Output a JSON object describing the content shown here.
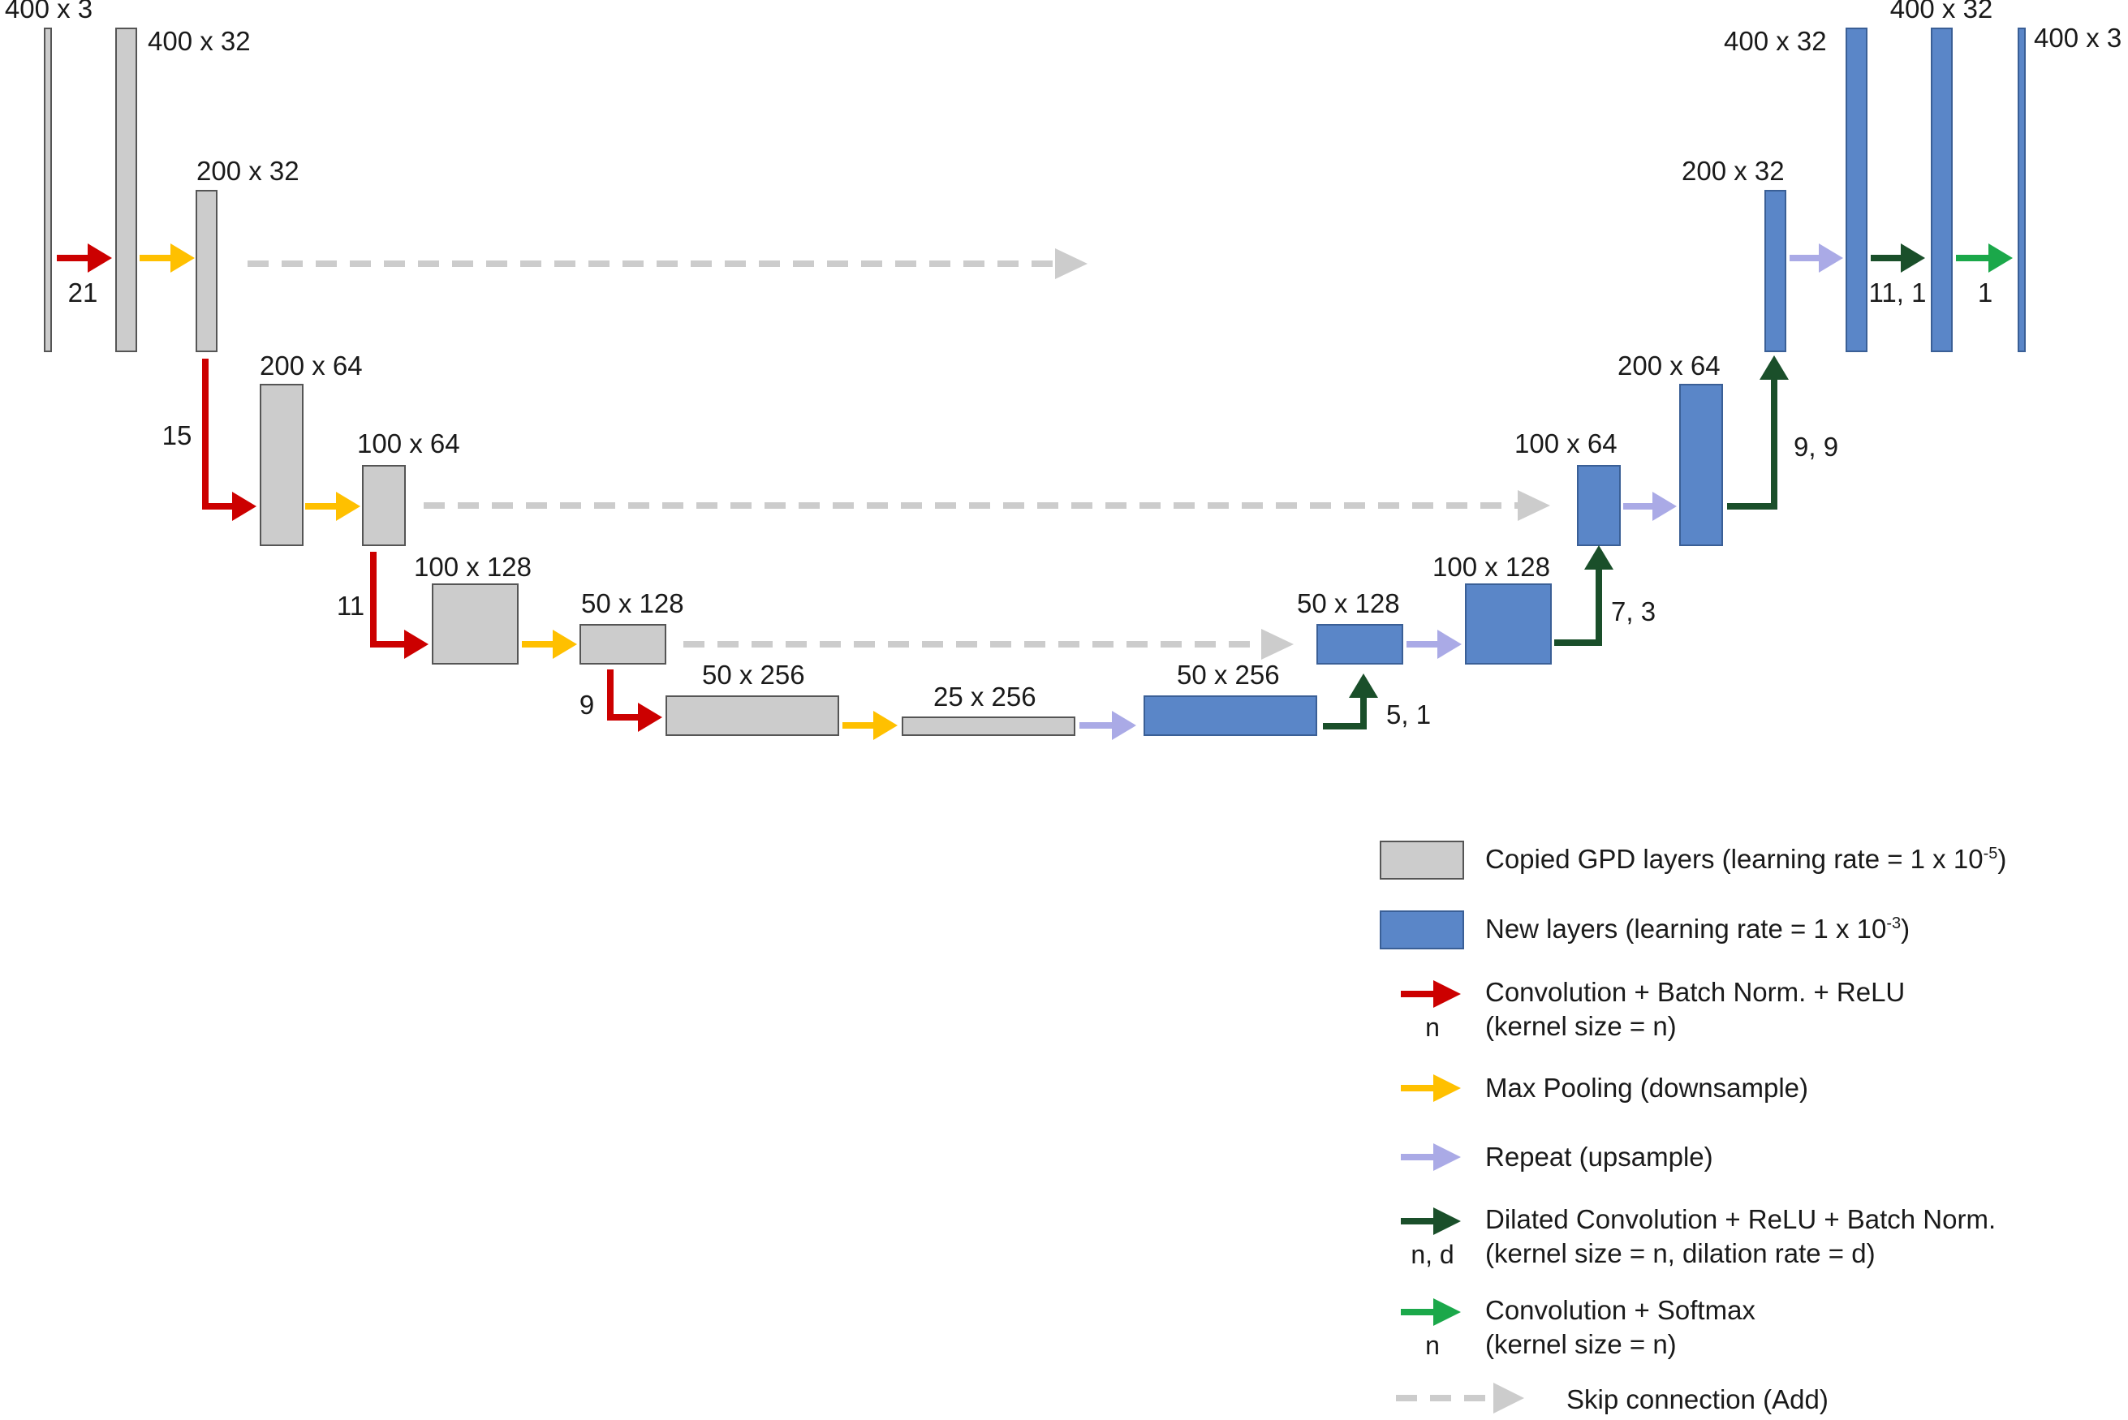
{
  "colors": {
    "copied_fill": "#cccccc",
    "copied_stroke": "#555555",
    "new_fill": "#5a86c8",
    "new_stroke": "#3a5f96",
    "conv": "#cc0000",
    "maxpool": "#ffc000",
    "repeat": "#aaaae6",
    "dilated": "#1a4f2a",
    "softmax": "#1ba84a",
    "skip": "#cccccc",
    "text": "#1a1a1a"
  },
  "layers": [
    {
      "id": "enc-input",
      "label": "400 x 3",
      "type": "copied"
    },
    {
      "id": "enc-conv1",
      "label": "400 x 32",
      "type": "copied"
    },
    {
      "id": "enc-pool1",
      "label": "200 x 32",
      "type": "copied"
    },
    {
      "id": "enc-conv2",
      "label": "200 x 64",
      "type": "copied"
    },
    {
      "id": "enc-pool2",
      "label": "100 x 64",
      "type": "copied"
    },
    {
      "id": "enc-conv3",
      "label": "100 x 128",
      "type": "copied"
    },
    {
      "id": "enc-pool3",
      "label": "50 x 128",
      "type": "copied"
    },
    {
      "id": "enc-conv4",
      "label": "50 x 256",
      "type": "copied"
    },
    {
      "id": "bottleneck",
      "label": "25 x 256",
      "type": "copied"
    },
    {
      "id": "dec-up1",
      "label": "50 x 256",
      "type": "new"
    },
    {
      "id": "dec-add3",
      "label": "50 x 128",
      "type": "new"
    },
    {
      "id": "dec-up2",
      "label": "100 x 128",
      "type": "new"
    },
    {
      "id": "dec-add2",
      "label": "100 x 64",
      "type": "new"
    },
    {
      "id": "dec-up3",
      "label": "200 x 64",
      "type": "new"
    },
    {
      "id": "dec-add1",
      "label": "200 x 32",
      "type": "new"
    },
    {
      "id": "dec-up4",
      "label": "400 x 32",
      "type": "new"
    },
    {
      "id": "dec-conv",
      "label": "400 x 32",
      "type": "new"
    },
    {
      "id": "output",
      "label": "400 x 3",
      "type": "new"
    }
  ],
  "operations": [
    {
      "id": "conv-21",
      "kind": "conv",
      "param": "21"
    },
    {
      "id": "conv-15",
      "kind": "conv",
      "param": "15"
    },
    {
      "id": "conv-11",
      "kind": "conv",
      "param": "11"
    },
    {
      "id": "conv-9",
      "kind": "conv",
      "param": "9"
    },
    {
      "id": "dilated-5-1",
      "kind": "dilated",
      "param": "5, 1"
    },
    {
      "id": "dilated-7-3",
      "kind": "dilated",
      "param": "7, 3"
    },
    {
      "id": "dilated-9-9",
      "kind": "dilated",
      "param": "9, 9"
    },
    {
      "id": "dilated-11-1",
      "kind": "dilated",
      "param": "11, 1"
    },
    {
      "id": "softmax-1",
      "kind": "softmax",
      "param": "1"
    }
  ],
  "legend": {
    "copied": {
      "text": "Copied GPD layers (learning rate = 1 x 10",
      "exp": "-5",
      "suffix": ")"
    },
    "new": {
      "text": "New layers (learning rate = 1 x 10",
      "exp": "-3",
      "suffix": ")"
    },
    "conv": {
      "line1": "Convolution + Batch Norm. + ReLU",
      "line2": "(kernel size = n)",
      "param": "n"
    },
    "maxpool": {
      "line1": "Max Pooling (downsample)"
    },
    "repeat": {
      "line1": "Repeat (upsample)"
    },
    "dilated": {
      "line1": "Dilated Convolution + ReLU + Batch Norm.",
      "line2": "(kernel size = n, dilation rate = d)",
      "param": "n, d"
    },
    "softmax": {
      "line1": "Convolution + Softmax",
      "line2": "(kernel size = n)",
      "param": "n"
    },
    "skip": {
      "line1": "Skip connection (Add)"
    }
  }
}
